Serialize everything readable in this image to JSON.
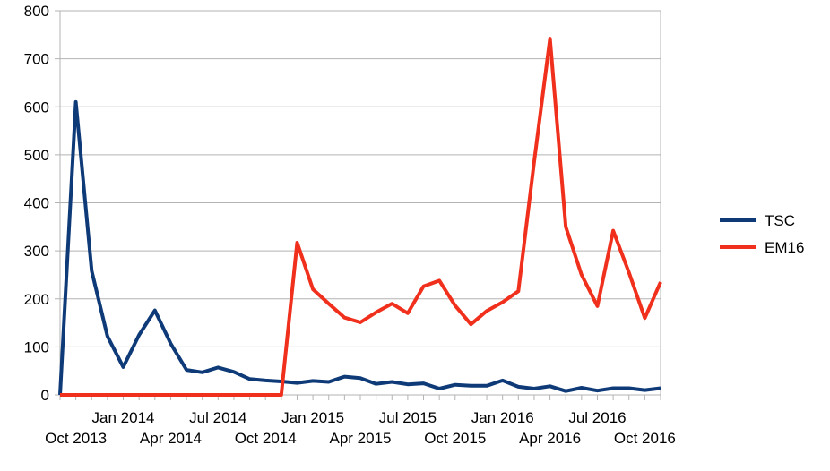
{
  "chart_data": {
    "type": "line",
    "title": "",
    "xlabel": "",
    "ylabel": "",
    "ylim": [
      0,
      800
    ],
    "yticks": [
      0,
      100,
      200,
      300,
      400,
      500,
      600,
      700,
      800
    ],
    "grid": "horizontal",
    "legend_position": "right",
    "x": [
      "2013-09",
      "2013-10",
      "2013-11",
      "2013-12",
      "2014-01",
      "2014-02",
      "2014-03",
      "2014-04",
      "2014-05",
      "2014-06",
      "2014-07",
      "2014-08",
      "2014-09",
      "2014-10",
      "2014-11",
      "2014-12",
      "2015-01",
      "2015-02",
      "2015-03",
      "2015-04",
      "2015-05",
      "2015-06",
      "2015-07",
      "2015-08",
      "2015-09",
      "2015-10",
      "2015-11",
      "2015-12",
      "2016-01",
      "2016-02",
      "2016-03",
      "2016-04",
      "2016-05",
      "2016-06",
      "2016-07",
      "2016-08",
      "2016-09",
      "2016-10",
      "2016-11"
    ],
    "x_tick_labels_upper": [
      "Jan 2014",
      "Jul 2014",
      "Jan 2015",
      "Jul 2015",
      "Jan 2016",
      "Jul 2016"
    ],
    "x_tick_labels_lower": [
      "Oct 2013",
      "Apr 2014",
      "Oct 2014",
      "Apr 2015",
      "Oct 2015",
      "Apr 2016",
      "Oct 2016"
    ],
    "series": [
      {
        "name": "TSC",
        "color": "#0e3a78",
        "values": [
          0,
          610,
          258,
          122,
          58,
          125,
          176,
          107,
          52,
          47,
          57,
          48,
          33,
          30,
          28,
          25,
          29,
          27,
          38,
          35,
          23,
          27,
          22,
          24,
          13,
          21,
          19,
          19,
          30,
          17,
          13,
          18,
          8,
          15,
          9,
          14,
          14,
          10,
          14
        ]
      },
      {
        "name": "EM16",
        "color": "#f0301c",
        "values": [
          0,
          0,
          0,
          0,
          0,
          0,
          0,
          0,
          0,
          0,
          0,
          0,
          0,
          0,
          0,
          317,
          220,
          190,
          161,
          151,
          172,
          190,
          170,
          226,
          238,
          186,
          147,
          175,
          193,
          216,
          485,
          742,
          350,
          250,
          185,
          342,
          255,
          160,
          235
        ]
      }
    ]
  }
}
